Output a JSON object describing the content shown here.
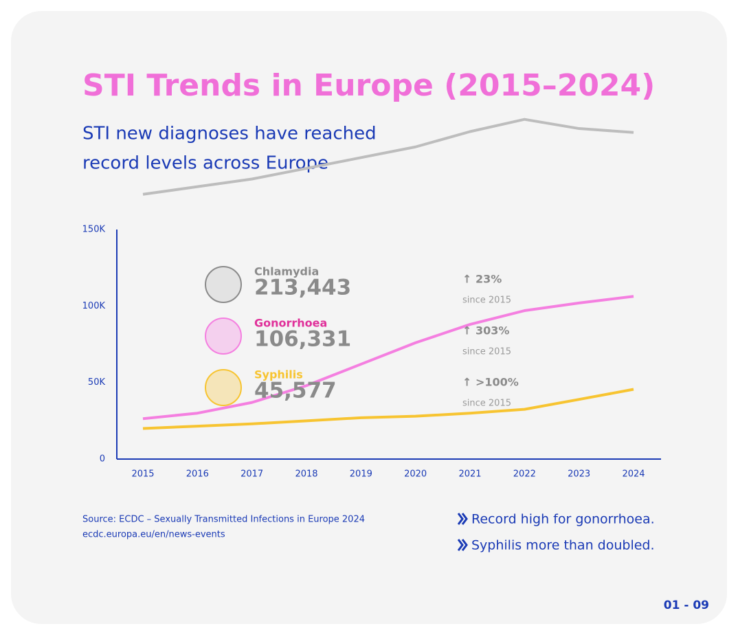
{
  "header": {
    "title": "STI Trends in Europe (2015–2024)",
    "subtitle_lines": [
      "STI new diagnoses have reached",
      "record levels across Europe"
    ]
  },
  "chart_data": {
    "type": "line",
    "x": [
      2015,
      2016,
      2017,
      2018,
      2019,
      2020,
      2021,
      2022,
      2023,
      2024
    ],
    "ylim": [
      0,
      150000
    ],
    "yticks": [
      0,
      {
        "value": 50000,
        "label": "50K"
      },
      {
        "value": 100000,
        "label": "100K"
      },
      {
        "value": 150000,
        "label": "150K"
      }
    ],
    "series": [
      {
        "name": "Chlamydia",
        "color": "#bdbdbd",
        "name_color": "#8a8a8a",
        "value_label": "213,443",
        "change_label": "↑ 23%",
        "since_label": "since 2015",
        "values": [
          173000,
          178000,
          183000,
          190000,
          197000,
          204000,
          214000,
          222000,
          216000,
          213443
        ]
      },
      {
        "name": "Gonorrhoea",
        "color": "#f47fe0",
        "name_color": "#e0309a",
        "value_label": "106,331",
        "change_label": "↑ 303%",
        "since_label": "since 2015",
        "values": [
          26400,
          30000,
          37000,
          48000,
          62000,
          76000,
          88000,
          97000,
          102000,
          106331
        ]
      },
      {
        "name": "Syphilis",
        "color": "#f7c431",
        "name_color": "#f7c431",
        "value_label": "45,577",
        "change_label": "↑ >100%",
        "since_label": "since 2015",
        "values": [
          20000,
          21500,
          23000,
          25000,
          27000,
          28000,
          30000,
          32500,
          39000,
          45577
        ]
      }
    ]
  },
  "footer": {
    "source": "Source: ECDC – Sexually Transmitted Infections in Europe 2024",
    "url": "ecdc.europa.eu/en/news-events",
    "bullets": [
      "Record high for gonorrhoea.",
      "Syphilis more than doubled."
    ],
    "page": "01 - 09"
  }
}
